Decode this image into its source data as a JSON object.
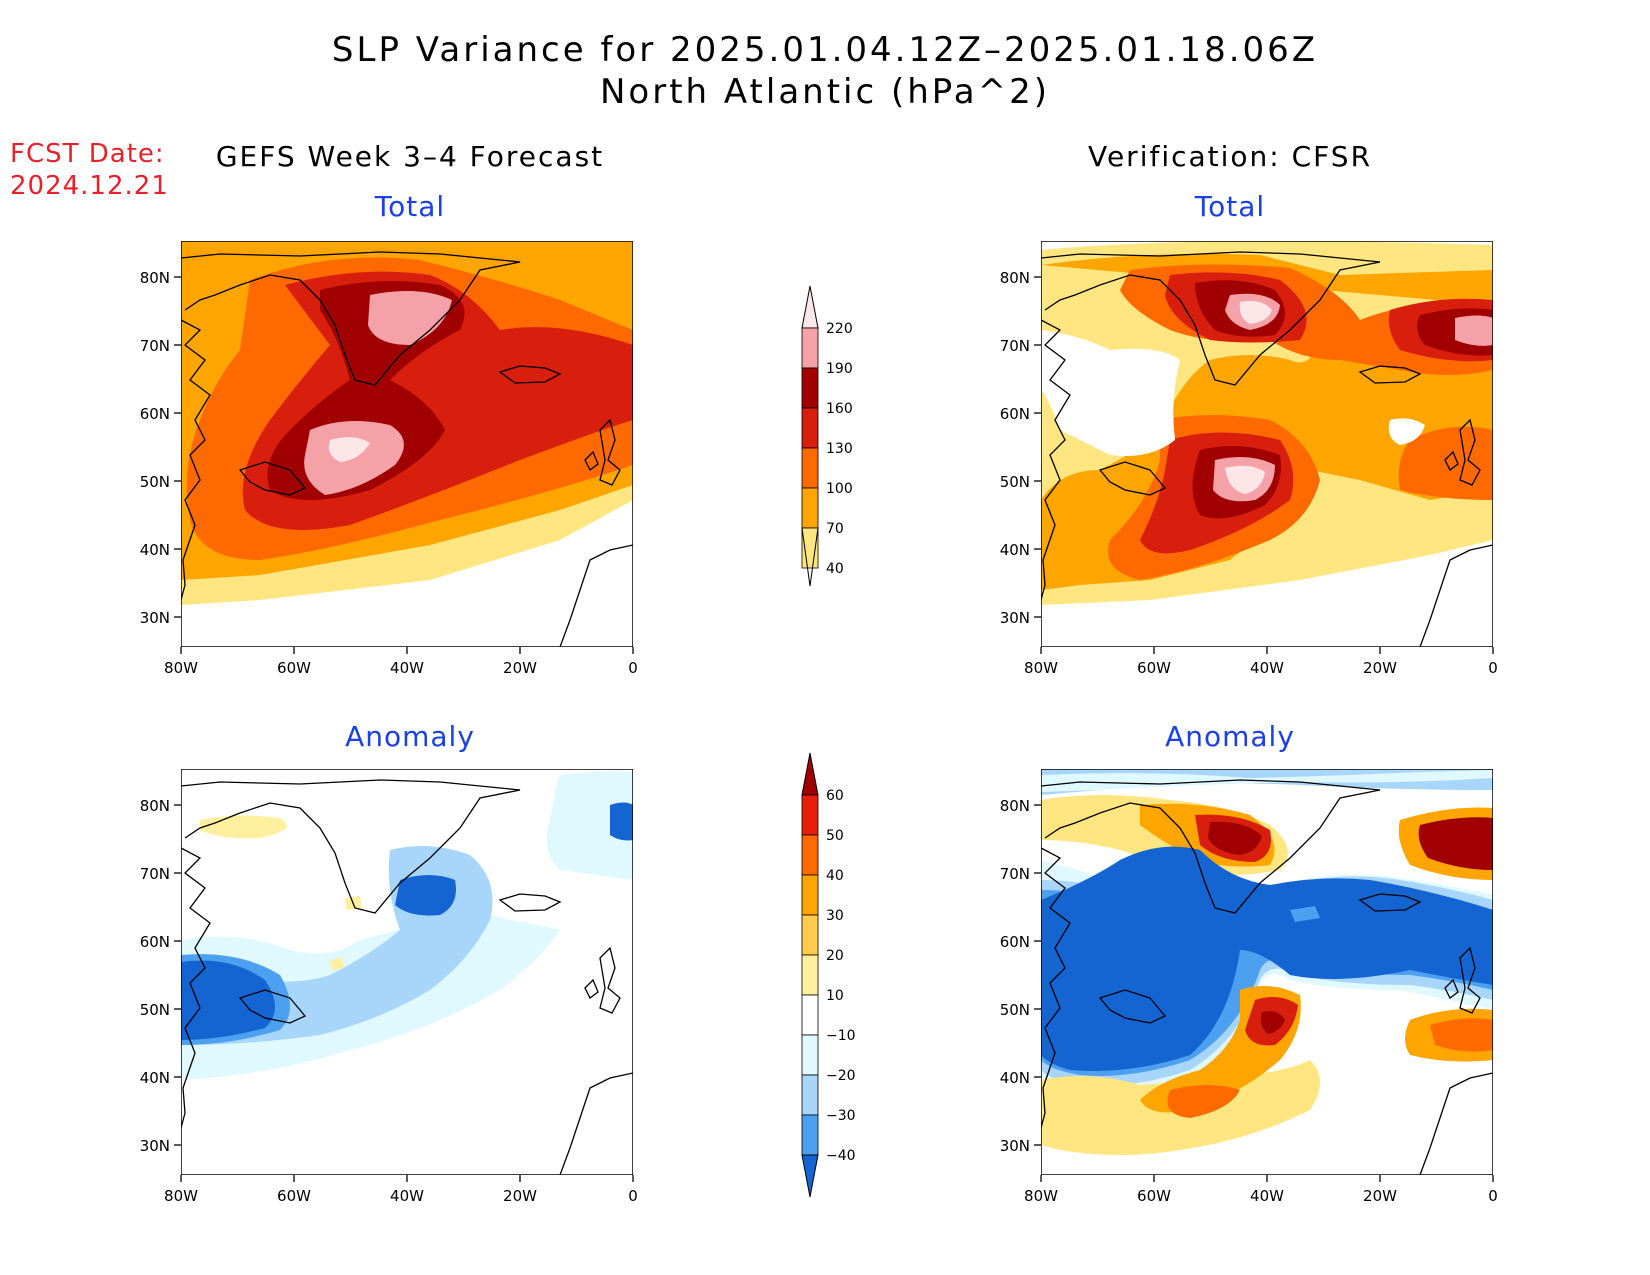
{
  "header": {
    "title_line1": "SLP Variance for 2025.01.04.12Z–2025.01.18.06Z",
    "title_line2": "North Atlantic (hPa^2)"
  },
  "fcst": {
    "label": "FCST Date:",
    "date": "2024.12.21"
  },
  "columns": {
    "left": "GEFS Week 3–4 Forecast",
    "right": "Verification: CFSR"
  },
  "panel_titles": {
    "total": "Total",
    "anomaly": "Anomaly"
  },
  "axes": {
    "lon_ticks": [
      "80W",
      "60W",
      "40W",
      "20W",
      "0"
    ],
    "lat_ticks": [
      "80N",
      "70N",
      "60N",
      "50N",
      "40N",
      "30N"
    ]
  },
  "total_colorbar": {
    "levels": [
      "220",
      "190",
      "160",
      "130",
      "100",
      "70",
      "40"
    ],
    "colors": [
      "#fde6e8",
      "#f4a2a8",
      "#a00000",
      "#d81e0c",
      "#ff6a00",
      "#ffa500",
      "#ffe680"
    ]
  },
  "anomaly_colorbar": {
    "levels": [
      "60",
      "50",
      "40",
      "30",
      "20",
      "10",
      "−10",
      "−20",
      "−30",
      "−40"
    ],
    "colors": [
      "#a00000",
      "#e81e0a",
      "#ff6a00",
      "#ffa500",
      "#ffcc4d",
      "#fff0a0",
      "#ffffff",
      "#e0f8ff",
      "#a8d6fa",
      "#4da0f0",
      "#1464d2"
    ]
  },
  "colors": {
    "fcst_red": "#e8202a",
    "panel_title_blue": "#1a40e6"
  }
}
